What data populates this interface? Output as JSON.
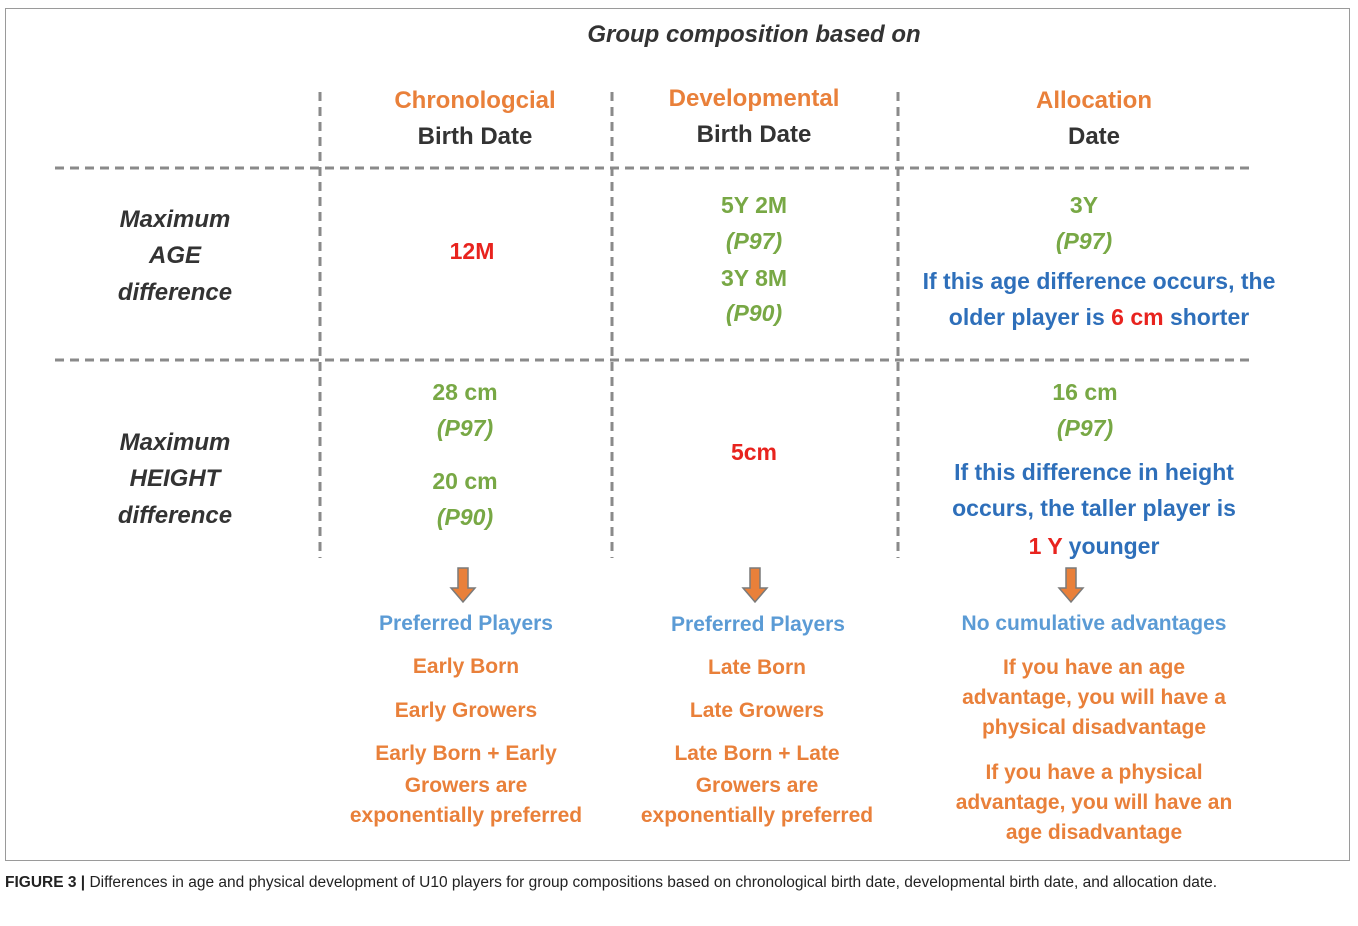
{
  "title": "Group composition based on",
  "columns": [
    {
      "name": "Chronologcial",
      "sub": "Birth Date"
    },
    {
      "name": "Developmental",
      "sub": "Birth Date"
    },
    {
      "name": "Allocation",
      "sub": "Date"
    }
  ],
  "rows": [
    {
      "label": [
        "Maximum",
        "AGE",
        "difference"
      ],
      "chronological": [
        "12M"
      ],
      "developmental": [
        "5Y 2M",
        "(P97)",
        "3Y 8M",
        "(P90)"
      ],
      "allocation": [
        "3Y",
        "(P97)"
      ],
      "note": {
        "line1": "If this age difference occurs, the",
        "before": "older player is ",
        "highlight": "6 cm",
        "after": " shorter"
      }
    },
    {
      "label": [
        "Maximum",
        "HEIGHT",
        "difference"
      ],
      "chronological": [
        "28 cm",
        "(P97)",
        "20 cm",
        "(P90)"
      ],
      "developmental": [
        "5cm"
      ],
      "allocation": [
        "16 cm",
        "(P97)"
      ],
      "note": {
        "line1": "If this difference in height",
        "line2": "occurs, the taller player is",
        "highlight": "1 Y",
        "after": " younger"
      }
    }
  ],
  "outcomes": [
    {
      "heading": "Preferred Players",
      "items": [
        [
          "Early Born"
        ],
        [
          "Early Growers"
        ],
        [
          "Early Born + Early",
          "Growers are",
          "exponentially preferred"
        ]
      ]
    },
    {
      "heading": "Preferred Players",
      "items": [
        [
          "Late Born"
        ],
        [
          "Late Growers"
        ],
        [
          "Late Born + Late",
          "Growers are",
          "exponentially preferred"
        ]
      ]
    },
    {
      "heading": "No cumulative advantages",
      "items": [
        [
          "If you have an age",
          "advantage, you will have a",
          "physical disadvantage"
        ],
        [
          "If you have a physical",
          "advantage, you will have an",
          "age disadvantage"
        ]
      ]
    }
  ],
  "caption": {
    "label": "FIGURE 3 |",
    "text": " Differences in age and physical development of U10 players for group compositions based on chronological birth date, developmental birth date, and allocation date."
  }
}
